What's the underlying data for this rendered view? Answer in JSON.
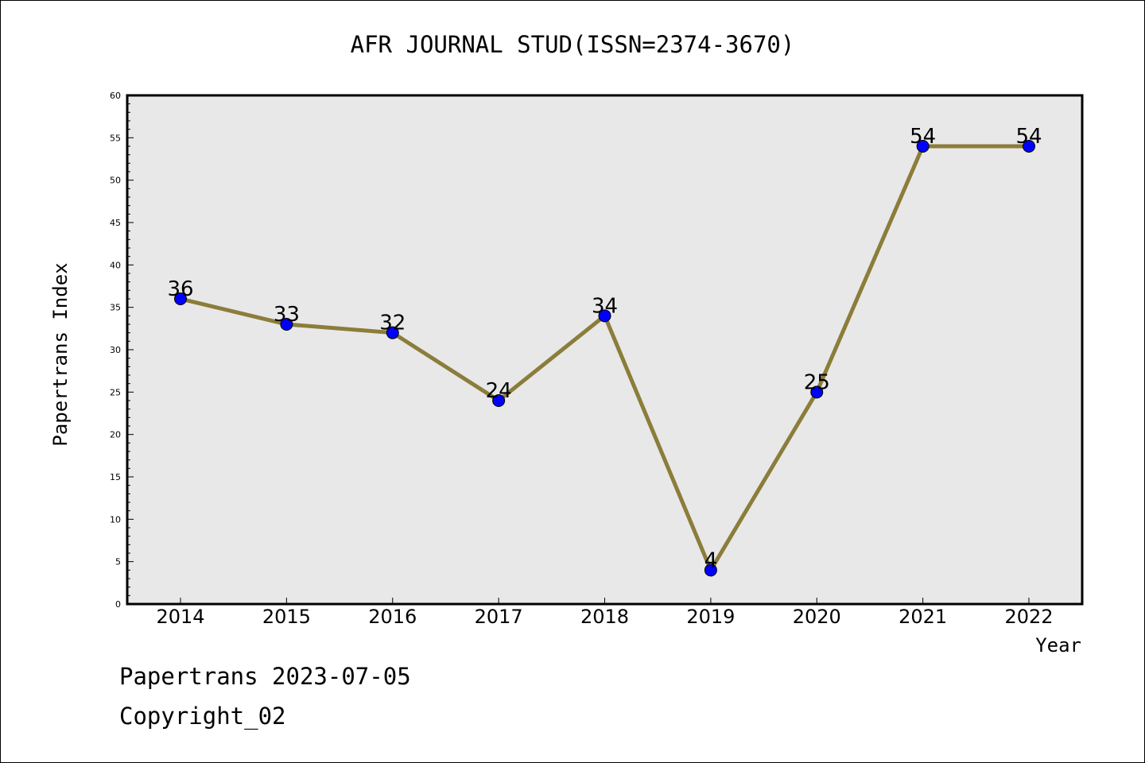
{
  "chart_data": {
    "type": "line",
    "title": "AFR JOURNAL STUD(ISSN=2374-3670)",
    "xlabel": "Year",
    "ylabel": "Papertrans Index",
    "categories": [
      "2014",
      "2015",
      "2016",
      "2017",
      "2018",
      "2019",
      "2020",
      "2021",
      "2022"
    ],
    "series": [
      {
        "values": [
          36,
          33,
          32,
          24,
          34,
          4,
          25,
          54,
          54
        ],
        "data_labels": [
          "36",
          "33",
          "32",
          "24",
          "34",
          "4",
          "25",
          "54",
          "54"
        ]
      }
    ],
    "ylim": [
      0,
      60
    ],
    "y_ticks": [
      "0",
      "5",
      "10",
      "15",
      "20",
      "25",
      "30",
      "35",
      "40",
      "45",
      "50",
      "55",
      "60"
    ],
    "grid": false,
    "line_color": "#8b7d3a",
    "marker_color": "#0000ff",
    "plot_background": "#e8e8e8"
  },
  "footer": {
    "line1": "Papertrans 2023-07-05",
    "line2": "Copyright_02"
  }
}
